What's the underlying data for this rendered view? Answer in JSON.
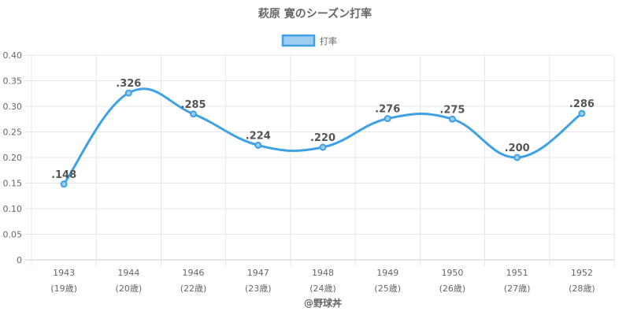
{
  "chart_data": {
    "type": "line",
    "title": "萩原 寛のシーズン打率",
    "legend": {
      "label": "打率",
      "position": "top"
    },
    "categories": [
      {
        "year": "1943",
        "age": "(19歳)"
      },
      {
        "year": "1944",
        "age": "(20歳)"
      },
      {
        "year": "1946",
        "age": "(22歳)"
      },
      {
        "year": "1947",
        "age": "(23歳)"
      },
      {
        "year": "1948",
        "age": "(24歳)"
      },
      {
        "year": "1949",
        "age": "(25歳)"
      },
      {
        "year": "1950",
        "age": "(26歳)"
      },
      {
        "year": "1951",
        "age": "(27歳)"
      },
      {
        "year": "1952",
        "age": "(28歳)"
      }
    ],
    "series": [
      {
        "name": "打率",
        "values": [
          0.148,
          0.326,
          0.285,
          0.224,
          0.22,
          0.276,
          0.275,
          0.2,
          0.286
        ],
        "labels": [
          ".148",
          ".326",
          ".285",
          ".224",
          ".220",
          ".276",
          ".275",
          ".200",
          ".286"
        ]
      }
    ],
    "ylim": [
      0,
      0.4
    ],
    "yticks": [
      "0",
      "0.05",
      "0.10",
      "0.15",
      "0.20",
      "0.25",
      "0.30",
      "0.35",
      "0.40"
    ],
    "grid": true,
    "colors": {
      "line": "#3ea1e6",
      "fill": "#9fcdf0",
      "grid": "#e6e6e6",
      "axis": "#cccccc"
    }
  },
  "credit": "@野球丼"
}
